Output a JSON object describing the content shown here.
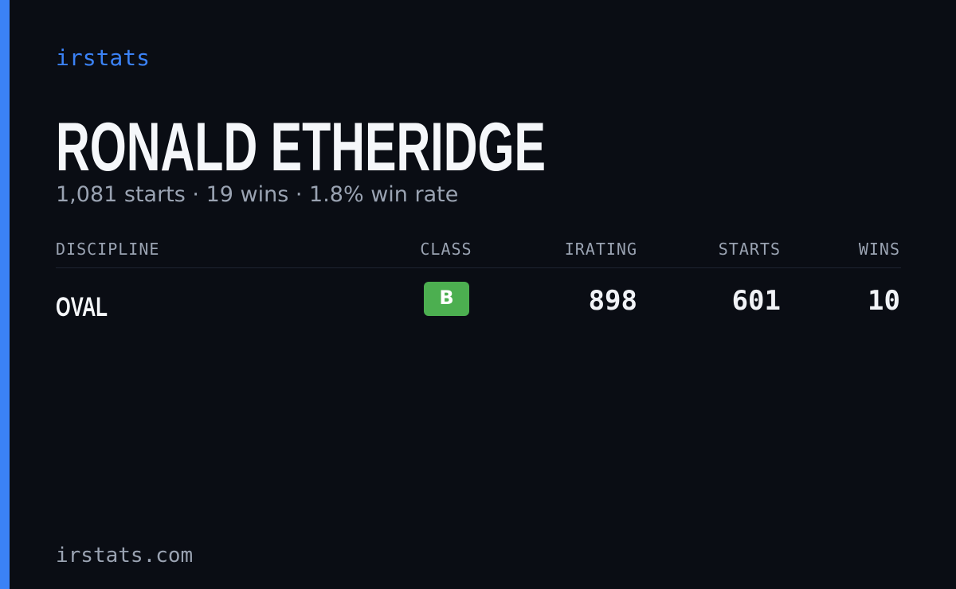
{
  "brand": "irstats",
  "driver": {
    "name": "RONALD ETHERIDGE",
    "summary": "1,081 starts · 19 wins · 1.8% win rate"
  },
  "table": {
    "headers": [
      "DISCIPLINE",
      "CLASS",
      "IRATING",
      "STARTS",
      "WINS"
    ],
    "rows": [
      [
        "OVAL",
        "B",
        898,
        601,
        10
      ]
    ]
  },
  "footer": "irstats.com"
}
